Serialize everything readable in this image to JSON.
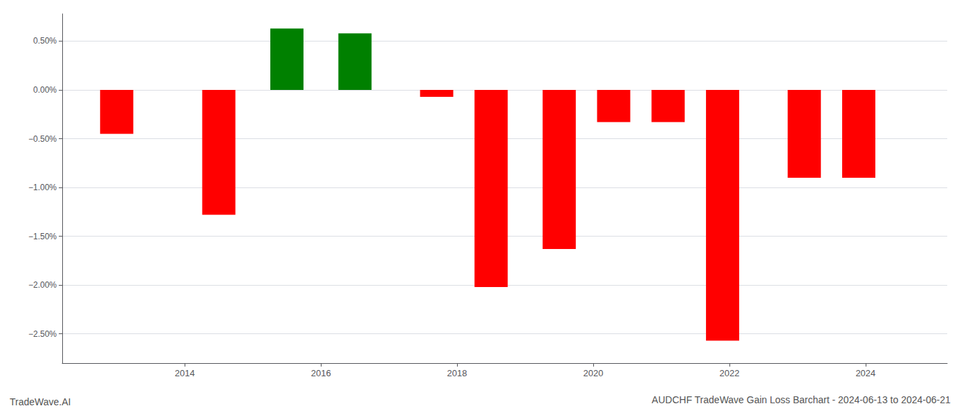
{
  "chart_data": {
    "type": "bar",
    "title": "AUDCHF TradeWave Gain Loss Barchart - 2024-06-13 to 2024-06-21",
    "annotations": [
      "TradeWave.AI"
    ],
    "x": [
      2013.0,
      2014.5,
      2015.5,
      2016.5,
      2017.7,
      2018.5,
      2019.5,
      2020.3,
      2021.1,
      2021.9,
      2023.1,
      2023.9
    ],
    "values": [
      -0.45,
      -1.28,
      0.63,
      0.58,
      -0.07,
      -2.02,
      -1.63,
      -0.33,
      -0.33,
      -2.57,
      -0.9,
      -0.9
    ],
    "colors": [
      "#ff0000",
      "#ff0000",
      "#008000",
      "#008000",
      "#ff0000",
      "#ff0000",
      "#ff0000",
      "#ff0000",
      "#ff0000",
      "#ff0000",
      "#ff0000",
      "#ff0000"
    ],
    "xlim": [
      2012.2,
      2025.2
    ],
    "xticks": [
      2014,
      2016,
      2018,
      2020,
      2022,
      2024
    ],
    "ylim": [
      -2.8,
      0.78
    ],
    "yticks": [
      {
        "value": 0.5,
        "label": "0.50%"
      },
      {
        "value": 0.0,
        "label": "0.00%"
      },
      {
        "value": -0.5,
        "label": "−0.50%"
      },
      {
        "value": -1.0,
        "label": "−1.00%"
      },
      {
        "value": -1.5,
        "label": "−1.50%"
      },
      {
        "value": -2.0,
        "label": "−2.00%"
      },
      {
        "value": -2.5,
        "label": "−2.50%"
      }
    ],
    "grid": true
  }
}
